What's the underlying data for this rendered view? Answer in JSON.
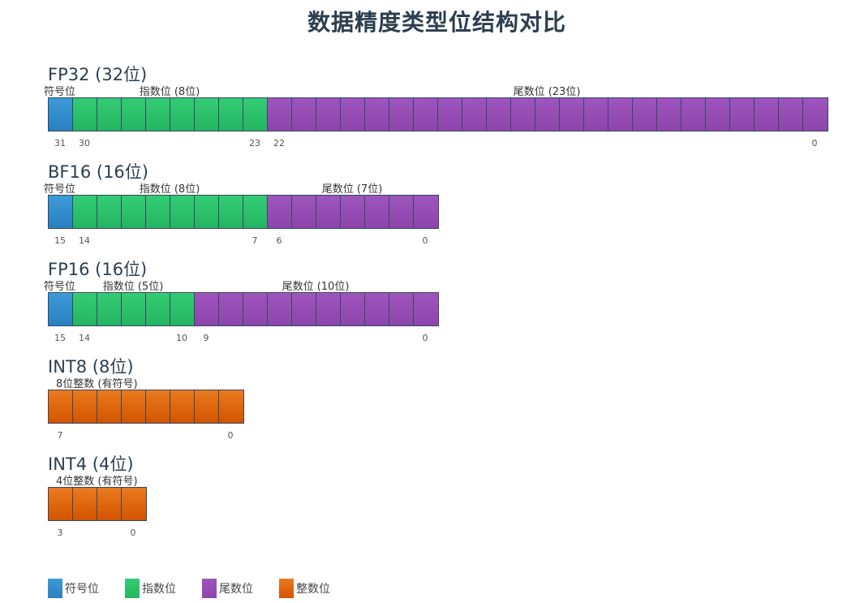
{
  "title": "数据精度类型位结构对比",
  "colors": {
    "sign": "#3498db",
    "exponent": "#2ecc71",
    "mantissa": "#9b59b6",
    "integer": "#e67e22"
  },
  "formats": [
    {
      "name": "FP32 (32位)",
      "total_bits": 32,
      "segments": [
        {
          "kind": "sign",
          "bits": 1,
          "label": "符号位"
        },
        {
          "kind": "exp",
          "bits": 8,
          "label": "指数位 (8位)"
        },
        {
          "kind": "man",
          "bits": 23,
          "label": "尾数位 (23位)"
        }
      ],
      "index_labels": [
        "31",
        "30",
        "23",
        "22",
        "0"
      ]
    },
    {
      "name": "BF16 (16位)",
      "total_bits": 16,
      "segments": [
        {
          "kind": "sign",
          "bits": 1,
          "label": "符号位"
        },
        {
          "kind": "exp",
          "bits": 8,
          "label": "指数位 (8位)"
        },
        {
          "kind": "man",
          "bits": 7,
          "label": "尾数位 (7位)"
        }
      ],
      "index_labels": [
        "15",
        "14",
        "7",
        "6",
        "0"
      ]
    },
    {
      "name": "FP16 (16位)",
      "total_bits": 16,
      "segments": [
        {
          "kind": "sign",
          "bits": 1,
          "label": "符号位"
        },
        {
          "kind": "exp",
          "bits": 5,
          "label": "指数位 (5位)"
        },
        {
          "kind": "man",
          "bits": 10,
          "label": "尾数位 (10位)"
        }
      ],
      "index_labels": [
        "15",
        "14",
        "10",
        "9",
        "0"
      ]
    },
    {
      "name": "INT8 (8位)",
      "total_bits": 8,
      "segments": [
        {
          "kind": "int",
          "bits": 8,
          "label": "8位整数 (有符号)"
        }
      ],
      "index_labels": [
        "7",
        "0"
      ]
    },
    {
      "name": "INT4 (4位)",
      "total_bits": 4,
      "segments": [
        {
          "kind": "int",
          "bits": 4,
          "label": "4位整数 (有符号)"
        }
      ],
      "index_labels": [
        "3",
        "0"
      ]
    }
  ],
  "legend": [
    {
      "kind": "sign",
      "label": "符号位"
    },
    {
      "kind": "exp",
      "label": "指数位"
    },
    {
      "kind": "man",
      "label": "尾数位"
    },
    {
      "kind": "int",
      "label": "整数位"
    }
  ]
}
